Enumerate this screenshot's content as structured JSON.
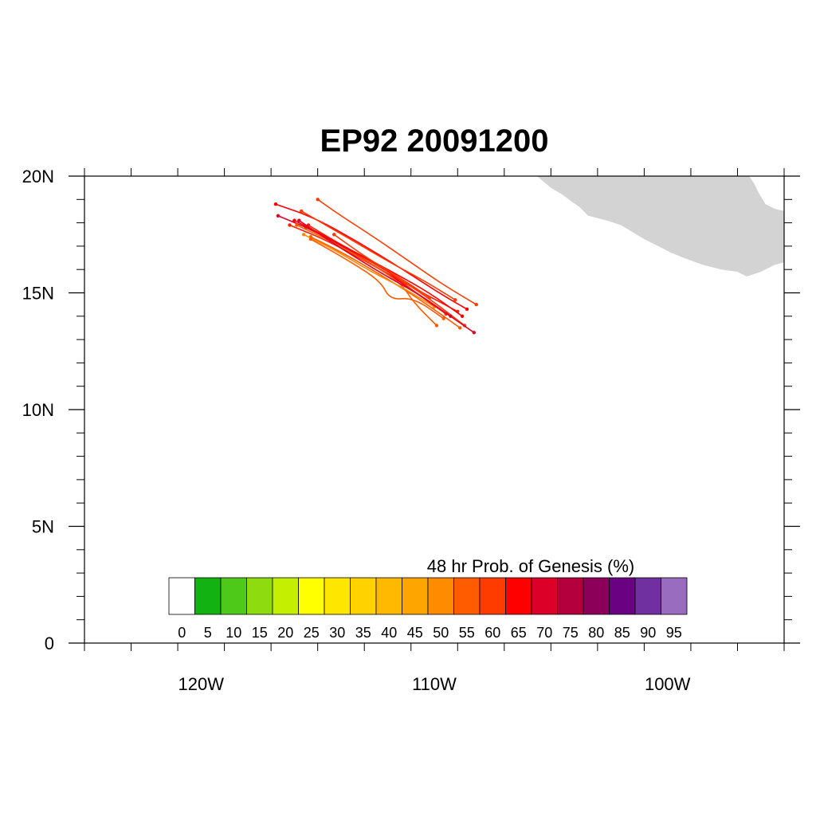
{
  "title": "EP92 20091200",
  "map": {
    "lon_range": [
      -125,
      -95
    ],
    "lat_range": [
      0,
      20
    ],
    "lon_labels": [
      {
        "lon": -120,
        "label": "120W"
      },
      {
        "lon": -110,
        "label": "110W"
      },
      {
        "lon": -100,
        "label": "100W"
      }
    ],
    "lat_labels": [
      {
        "lat": 20,
        "label": "20N"
      },
      {
        "lat": 15,
        "label": "15N"
      },
      {
        "lat": 10,
        "label": "10N"
      },
      {
        "lat": 5,
        "label": "5N"
      },
      {
        "lat": 0,
        "label": "0"
      }
    ],
    "land_color": "#d3d3d3",
    "land_outline": [
      [
        -105.6,
        20.0
      ],
      [
        -105.0,
        19.5
      ],
      [
        -104.5,
        19.2
      ],
      [
        -104.1,
        18.9
      ],
      [
        -103.8,
        18.7
      ],
      [
        -103.4,
        18.3
      ],
      [
        -102.6,
        18.1
      ],
      [
        -102.0,
        17.9
      ],
      [
        -101.5,
        17.6
      ],
      [
        -101.0,
        17.3
      ],
      [
        -100.4,
        17.0
      ],
      [
        -99.8,
        16.7
      ],
      [
        -99.3,
        16.5
      ],
      [
        -98.5,
        16.2
      ],
      [
        -97.7,
        16.0
      ],
      [
        -97.0,
        15.9
      ],
      [
        -96.6,
        15.7
      ],
      [
        -96.0,
        15.9
      ],
      [
        -95.4,
        16.2
      ],
      [
        -95.0,
        16.3
      ],
      [
        -95.0,
        18.5
      ],
      [
        -95.4,
        18.6
      ],
      [
        -95.8,
        18.8
      ],
      [
        -96.1,
        19.3
      ],
      [
        -96.3,
        19.7
      ],
      [
        -96.5,
        20.0
      ]
    ]
  },
  "colorbar": {
    "title": "48 hr Prob. of Genesis (%)",
    "labels": [
      "0",
      "5",
      "10",
      "15",
      "20",
      "25",
      "30",
      "35",
      "40",
      "45",
      "50",
      "55",
      "60",
      "65",
      "70",
      "75",
      "80",
      "85",
      "90",
      "95"
    ],
    "colors": [
      "#ffffff",
      "#11b211",
      "#4ec819",
      "#8edc0f",
      "#c4f000",
      "#ffff00",
      "#ffe600",
      "#ffd200",
      "#ffb900",
      "#ffa500",
      "#ff8c00",
      "#ff5c00",
      "#ff3c00",
      "#ff0000",
      "#dc0028",
      "#b4003c",
      "#8c005a",
      "#6a0082",
      "#7030a0",
      "#9a6cc0"
    ]
  },
  "tracks": [
    {
      "color": "#ff2000",
      "points": [
        [
          -109.0,
          14.2
        ],
        [
          -110.5,
          15.0
        ],
        [
          -112.5,
          16.1
        ],
        [
          -114.5,
          17.2
        ],
        [
          -116.2,
          17.9
        ]
      ]
    },
    {
      "color": "#ff3c00",
      "points": [
        [
          -108.7,
          13.6
        ],
        [
          -110.0,
          14.6
        ],
        [
          -111.8,
          15.8
        ],
        [
          -113.7,
          16.9
        ],
        [
          -115.5,
          17.8
        ]
      ]
    },
    {
      "color": "#dc0028",
      "points": [
        [
          -108.3,
          13.3
        ],
        [
          -109.6,
          14.2
        ],
        [
          -111.2,
          15.3
        ],
        [
          -113.1,
          16.5
        ],
        [
          -115.0,
          17.6
        ],
        [
          -116.7,
          18.3
        ]
      ]
    },
    {
      "color": "#ff5c00",
      "points": [
        [
          -108.9,
          13.5
        ],
        [
          -110.3,
          14.5
        ],
        [
          -112.0,
          15.6
        ],
        [
          -113.9,
          16.7
        ],
        [
          -115.3,
          17.4
        ]
      ]
    },
    {
      "color": "#ff0000",
      "points": [
        [
          -108.6,
          14.3
        ],
        [
          -109.8,
          15.0
        ],
        [
          -111.5,
          16.1
        ],
        [
          -113.3,
          17.2
        ],
        [
          -115.1,
          18.2
        ],
        [
          -116.8,
          18.8
        ]
      ]
    },
    {
      "color": "#ff3c00",
      "points": [
        [
          -108.2,
          14.5
        ],
        [
          -109.7,
          15.4
        ],
        [
          -111.0,
          16.3
        ],
        [
          -112.6,
          17.4
        ],
        [
          -114.0,
          18.3
        ],
        [
          -115.0,
          19.0
        ]
      ]
    },
    {
      "color": "#ff5c00",
      "points": [
        [
          -109.9,
          13.6
        ],
        [
          -110.9,
          14.6
        ],
        [
          -111.4,
          15.4
        ],
        [
          -112.8,
          16.3
        ],
        [
          -114.4,
          17.2
        ],
        [
          -115.9,
          17.9
        ]
      ]
    },
    {
      "color": "#ff8c00",
      "points": [
        [
          -110.0,
          14.4
        ],
        [
          -111.3,
          15.2
        ],
        [
          -112.7,
          15.9
        ],
        [
          -114.2,
          16.8
        ],
        [
          -115.6,
          17.5
        ]
      ]
    },
    {
      "color": "#ff2000",
      "points": [
        [
          -109.5,
          14.1
        ],
        [
          -110.8,
          15.0
        ],
        [
          -112.2,
          16.1
        ],
        [
          -113.9,
          17.0
        ],
        [
          -115.4,
          17.9
        ]
      ]
    },
    {
      "color": "#ff3c00",
      "points": [
        [
          -109.1,
          14.7
        ],
        [
          -110.4,
          15.5
        ],
        [
          -111.9,
          16.3
        ],
        [
          -113.6,
          17.3
        ],
        [
          -115.7,
          18.5
        ]
      ]
    },
    {
      "color": "#dc0028",
      "points": [
        [
          -109.3,
          14.0
        ],
        [
          -110.6,
          14.9
        ],
        [
          -112.2,
          15.8
        ],
        [
          -114.0,
          16.9
        ],
        [
          -115.8,
          18.1
        ]
      ]
    },
    {
      "color": "#ff5c00",
      "points": [
        [
          -109.6,
          13.9
        ],
        [
          -110.9,
          14.8
        ],
        [
          -111.9,
          14.7
        ],
        [
          -112.3,
          15.5
        ],
        [
          -113.7,
          16.4
        ],
        [
          -115.3,
          17.3
        ]
      ]
    },
    {
      "color": "#ff0000",
      "points": [
        [
          -108.8,
          14.0
        ],
        [
          -110.2,
          15.0
        ],
        [
          -111.8,
          15.9
        ],
        [
          -113.5,
          16.8
        ],
        [
          -115.2,
          17.7
        ],
        [
          -116.0,
          18.1
        ]
      ]
    },
    {
      "color": "#ff3c00",
      "points": [
        [
          -110.2,
          14.8
        ],
        [
          -111.4,
          15.6
        ],
        [
          -112.9,
          16.5
        ],
        [
          -114.3,
          17.5
        ]
      ]
    }
  ]
}
